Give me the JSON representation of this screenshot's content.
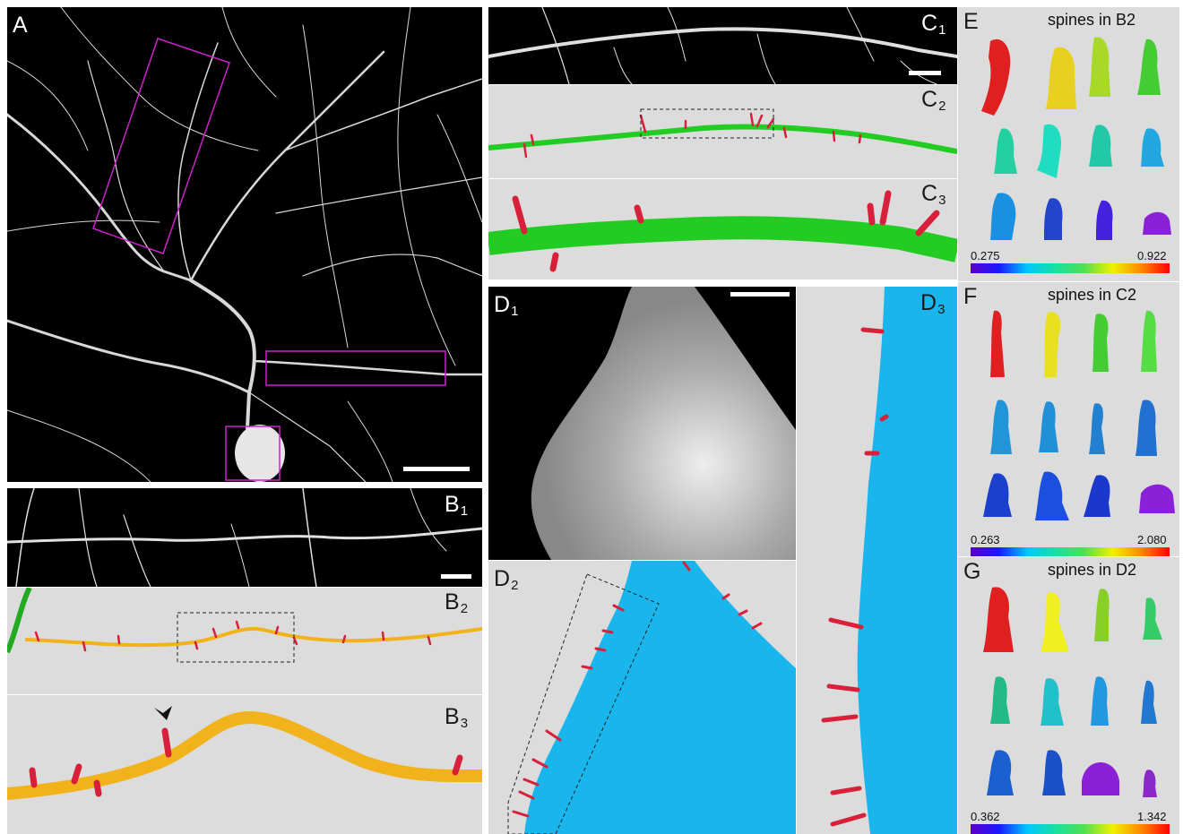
{
  "panel_labels": {
    "a": "A",
    "b1": {
      "letter": "B",
      "sub": "1"
    },
    "b2": {
      "letter": "B",
      "sub": "2"
    },
    "b3": {
      "letter": "B",
      "sub": "3"
    },
    "c1": {
      "letter": "C",
      "sub": "1"
    },
    "c2": {
      "letter": "C",
      "sub": "2"
    },
    "c3": {
      "letter": "C",
      "sub": "3"
    },
    "d1": {
      "letter": "D",
      "sub": "1"
    },
    "d2": {
      "letter": "D",
      "sub": "2"
    },
    "d3": {
      "letter": "D",
      "sub": "3"
    },
    "e": "E",
    "f": "F",
    "g": "G"
  },
  "spine_panels": [
    {
      "title": "spines in B2",
      "min": "0.275",
      "max": "0.922"
    },
    {
      "title": "spines in C2",
      "min": "0.263",
      "max": "2.080"
    },
    {
      "title": "spines in D2",
      "min": "0.362",
      "max": "1.342"
    }
  ],
  "colors": {
    "neuron": "#ffffff",
    "roi_box": "#cc22cc",
    "dendrite_b": "#f2b21c",
    "dendrite_c": "#22cc22",
    "soma_d": "#19b6ee",
    "spine": "#d8203a",
    "panel_bg": "#dcdcdc"
  }
}
